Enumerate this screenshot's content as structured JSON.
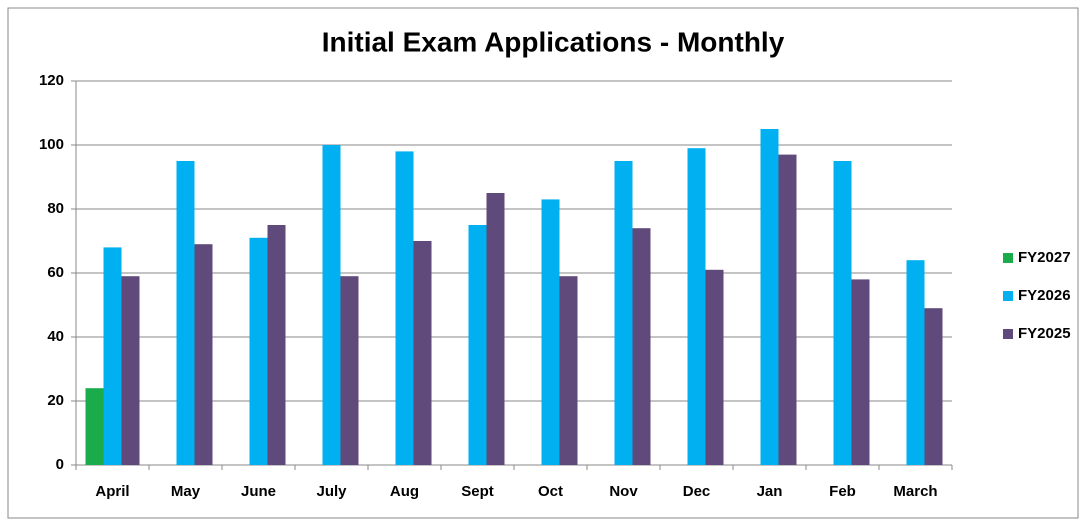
{
  "chart_data": {
    "type": "bar",
    "title": "Initial Exam Applications - Monthly",
    "categories": [
      "April",
      "May",
      "June",
      "July",
      "Aug",
      "Sept",
      "Oct",
      "Nov",
      "Dec",
      "Jan",
      "Feb",
      "March"
    ],
    "series": [
      {
        "name": "FY2027",
        "color": "#1aab4b",
        "values": [
          24,
          null,
          null,
          null,
          null,
          null,
          null,
          null,
          null,
          null,
          null,
          null
        ]
      },
      {
        "name": "FY2026",
        "color": "#00b0f0",
        "values": [
          68,
          95,
          71,
          100,
          98,
          75,
          83,
          95,
          99,
          105,
          95,
          64
        ]
      },
      {
        "name": "FY2025",
        "color": "#604a7b",
        "values": [
          59,
          69,
          75,
          59,
          70,
          85,
          59,
          74,
          61,
          97,
          58,
          49
        ]
      }
    ],
    "ylim": [
      0,
      120
    ],
    "yticks": [
      0,
      20,
      40,
      60,
      80,
      100,
      120
    ],
    "grid": true,
    "legend": "right"
  }
}
